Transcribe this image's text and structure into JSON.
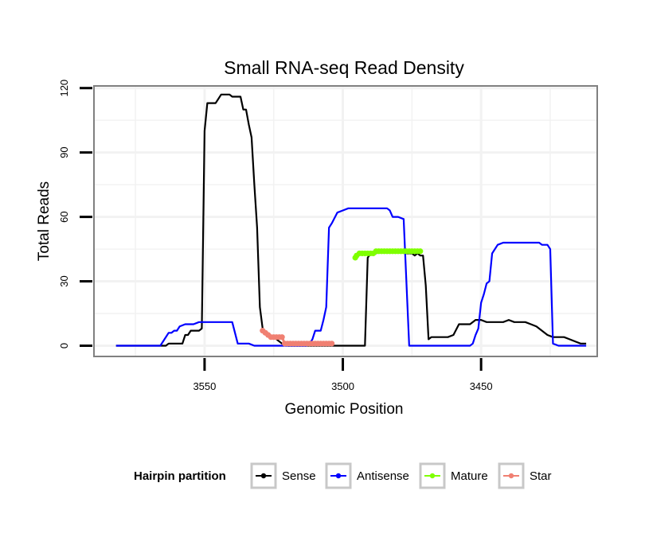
{
  "chart_data": {
    "type": "line",
    "title": "Small RNA-seq Read Density",
    "xlabel": "Genomic Position",
    "ylabel": "Total Reads",
    "xlim": [
      3590,
      3408
    ],
    "ylim": [
      -5,
      121
    ],
    "x_reversed": true,
    "grid": true,
    "x_ticks": [
      3550,
      3500,
      3450
    ],
    "x_tick_labels": [
      "3550",
      "3500",
      "3450"
    ],
    "y_ticks": [
      0,
      30,
      60,
      90,
      120
    ],
    "y_tick_labels": [
      "0",
      "30",
      "60",
      "90",
      "120"
    ],
    "legend": {
      "title": "Hairpin partition",
      "position": "bottom",
      "entries": [
        {
          "name": "Sense",
          "color": "#000000"
        },
        {
          "name": "Antisense",
          "color": "#0000ff"
        },
        {
          "name": "Mature",
          "color": "#7fff00"
        },
        {
          "name": "Star",
          "color": "#f08072"
        }
      ]
    },
    "series": [
      {
        "name": "Sense",
        "color": "#000000",
        "marker": false,
        "x": [
          3582,
          3575,
          3568,
          3564,
          3563,
          3560,
          3558,
          3557,
          3556,
          3555,
          3552,
          3551,
          3550,
          3549,
          3546,
          3544,
          3543,
          3542,
          3541,
          3540,
          3539,
          3538,
          3537,
          3536,
          3535,
          3534,
          3533,
          3532,
          3531,
          3530,
          3529,
          3527,
          3526,
          3525,
          3524,
          3522,
          3520,
          3518,
          3516,
          3514,
          3512,
          3510,
          3508,
          3506,
          3504,
          3502,
          3500,
          3498,
          3496,
          3494,
          3493,
          3492,
          3491,
          3490,
          3489,
          3488,
          3486,
          3484,
          3482,
          3480,
          3478,
          3477,
          3476,
          3475,
          3474,
          3473,
          3472,
          3471,
          3470,
          3469,
          3468,
          3466,
          3464,
          3462,
          3460,
          3458,
          3456,
          3454,
          3452,
          3450,
          3448,
          3446,
          3444,
          3442,
          3440,
          3438,
          3436,
          3434,
          3432,
          3430,
          3428,
          3426,
          3424,
          3423,
          3422,
          3420,
          3418,
          3416,
          3414,
          3412
        ],
        "y": [
          0,
          0,
          0,
          0,
          1,
          1,
          1,
          5,
          5,
          7,
          7,
          8,
          100,
          113,
          113,
          117,
          117,
          117,
          117,
          116,
          116,
          116,
          116,
          110,
          110,
          103,
          97,
          75,
          55,
          18,
          8,
          5,
          4,
          4,
          3,
          1,
          0,
          0,
          0,
          0,
          0,
          0,
          0,
          0,
          0,
          0,
          0,
          0,
          0,
          0,
          0,
          0,
          41,
          43,
          43,
          43,
          44,
          44,
          44,
          44,
          44,
          43,
          43,
          43,
          42,
          43,
          42,
          42,
          28,
          3,
          4,
          4,
          4,
          4,
          5,
          10,
          10,
          10,
          12,
          12,
          11,
          11,
          11,
          11,
          12,
          11,
          11,
          11,
          10,
          9,
          7,
          5,
          4,
          4,
          4,
          4,
          3,
          2,
          1,
          1
        ]
      },
      {
        "name": "Antisense",
        "color": "#0000ff",
        "marker": false,
        "x": [
          3582,
          3575,
          3568,
          3566,
          3565,
          3563,
          3562,
          3561,
          3560,
          3559,
          3557,
          3556,
          3555,
          3554,
          3552,
          3550,
          3548,
          3546,
          3544,
          3542,
          3541,
          3540,
          3538,
          3536,
          3535,
          3534,
          3532,
          3530,
          3528,
          3526,
          3524,
          3522,
          3520,
          3518,
          3516,
          3514,
          3513,
          3512,
          3511,
          3510,
          3509,
          3508,
          3507,
          3506,
          3505,
          3504,
          3502,
          3500,
          3498,
          3496,
          3494,
          3492,
          3490,
          3488,
          3486,
          3485,
          3484,
          3483,
          3482,
          3481,
          3480,
          3478,
          3476,
          3474,
          3472,
          3470,
          3468,
          3466,
          3464,
          3462,
          3460,
          3459,
          3458,
          3457,
          3456,
          3455,
          3454,
          3453,
          3452,
          3451,
          3450,
          3449,
          3448,
          3447,
          3446,
          3444,
          3442,
          3440,
          3438,
          3436,
          3434,
          3432,
          3430,
          3429,
          3428,
          3427,
          3426,
          3425,
          3424,
          3422,
          3420,
          3418,
          3416,
          3414,
          3413,
          3412
        ],
        "y": [
          0,
          0,
          0,
          0,
          2,
          6,
          6,
          7,
          7,
          9,
          10,
          10,
          10,
          10,
          11,
          11,
          11,
          11,
          11,
          11,
          11,
          11,
          1,
          1,
          1,
          1,
          0,
          0,
          0,
          0,
          0,
          0,
          0,
          0,
          0,
          0,
          0,
          1,
          3,
          7,
          7,
          7,
          12,
          18,
          55,
          57,
          62,
          63,
          64,
          64,
          64,
          64,
          64,
          64,
          64,
          64,
          64,
          63,
          60,
          60,
          60,
          59,
          0,
          0,
          0,
          0,
          0,
          0,
          0,
          0,
          0,
          0,
          0,
          0,
          0,
          0,
          0,
          1,
          5,
          8,
          20,
          24,
          29,
          30,
          43,
          47,
          48,
          48,
          48,
          48,
          48,
          48,
          48,
          48,
          47,
          47,
          47,
          45,
          1,
          0,
          0,
          0,
          0,
          0,
          0,
          0
        ]
      },
      {
        "name": "Mature",
        "color": "#7fff00",
        "marker": true,
        "x": [
          3495.5,
          3495,
          3494,
          3493,
          3492,
          3491,
          3490,
          3489,
          3488,
          3487,
          3486,
          3485,
          3484,
          3483,
          3482,
          3481,
          3480,
          3479,
          3478,
          3477,
          3476,
          3475,
          3474,
          3473,
          3472
        ],
        "y": [
          41,
          42,
          43,
          43,
          43,
          43,
          43,
          43,
          44,
          44,
          44,
          44,
          44,
          44,
          44,
          44,
          44,
          44,
          44,
          44,
          44,
          44,
          44,
          44,
          44
        ]
      },
      {
        "name": "Star",
        "color": "#f08072",
        "marker": true,
        "x": [
          3529,
          3528,
          3527,
          3526,
          3525,
          3524,
          3523,
          3522,
          3521,
          3520,
          3519,
          3518,
          3517,
          3516,
          3515,
          3514,
          3513,
          3512,
          3511,
          3510,
          3509,
          3508,
          3507,
          3506,
          3505,
          3504
        ],
        "y": [
          7,
          6,
          5,
          4,
          4,
          4,
          4,
          4,
          1,
          1,
          1,
          1,
          1,
          1,
          1,
          1,
          1,
          1,
          1,
          1,
          1,
          1,
          1,
          1,
          1,
          1
        ]
      }
    ]
  }
}
